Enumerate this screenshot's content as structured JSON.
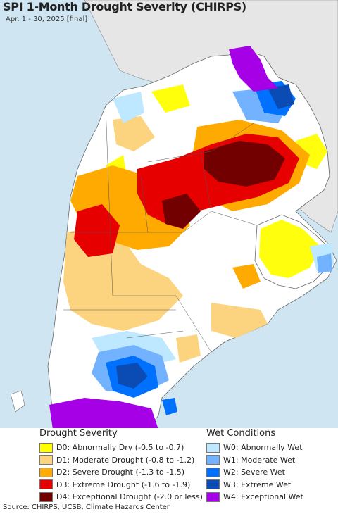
{
  "map": {
    "title": "SPI 1-Month Drought Severity (CHIRPS)",
    "subtitle": "Apr. 1 - 30, 2025 [final]",
    "ocean_color": "#cfe6f2",
    "land_color": "#ffffff",
    "foreign_land_color": "#e6e6e6"
  },
  "legend": {
    "drought": {
      "heading": "Drought Severity",
      "items": [
        {
          "label": "D0: Abnormally Dry (-0.5 to -0.7)",
          "color": "#ffff00"
        },
        {
          "label": "D1: Moderate Drought (-0.8 to -1.2)",
          "color": "#fcd37f"
        },
        {
          "label": "D2: Severe Drought (-1.3 to -1.5)",
          "color": "#ffaa00"
        },
        {
          "label": "D3: Extreme Drought (-1.6 to -1.9)",
          "color": "#e60000"
        },
        {
          "label": "D4: Exceptional Drought (-2.0 or less)",
          "color": "#730000"
        }
      ]
    },
    "wet": {
      "heading": "Wet Conditions",
      "items": [
        {
          "label": "W0: Abnormally Wet",
          "color": "#bee8ff"
        },
        {
          "label": "W1: Moderate Wet",
          "color": "#73b2ff"
        },
        {
          "label": "W2: Severe Wet",
          "color": "#0070ff"
        },
        {
          "label": "W3: Extreme Wet",
          "color": "#0a4bb4"
        },
        {
          "label": "W4: Exceptional Wet",
          "color": "#a500e6"
        }
      ]
    }
  },
  "source": "Source: CHIRPS, UCSB, Climate Hazards Center"
}
